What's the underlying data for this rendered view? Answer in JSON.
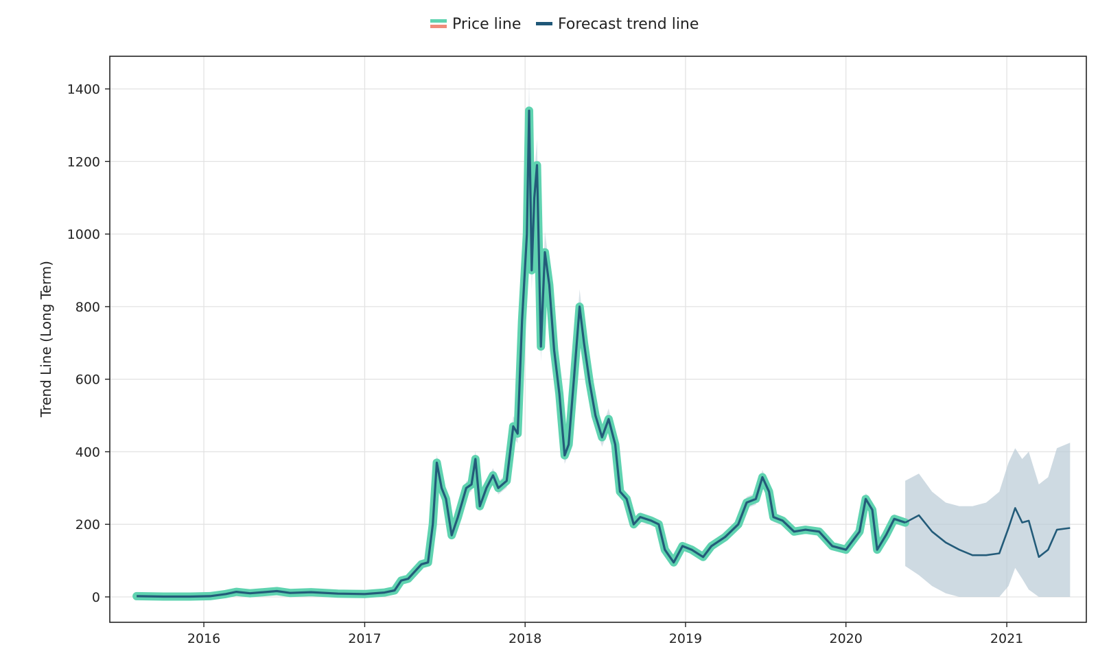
{
  "chart_data": {
    "type": "line",
    "ylabel": "Trend Line (Long Term)",
    "xlabel": "",
    "title": "",
    "legend_position": "top-center",
    "grid": true,
    "x_ticks": [
      "2016",
      "2017",
      "2018",
      "2019",
      "2020",
      "2021"
    ],
    "y_ticks": [
      0,
      200,
      400,
      600,
      800,
      1000,
      1200,
      1400
    ],
    "xlim": [
      "2015-06-01",
      "2021-07-01"
    ],
    "ylim": [
      -70,
      1490
    ],
    "legend": [
      {
        "label": "Price line",
        "colors": [
          "#5fd3b0",
          "#f08b7a"
        ]
      },
      {
        "label": "Forecast trend line",
        "colors": [
          "#1f5778"
        ]
      }
    ],
    "colors": {
      "price_line": "#5fd3b0",
      "forecast_line": "#235b79",
      "confidence_band": "#b9cad6"
    },
    "series": [
      {
        "name": "Price line",
        "points": [
          [
            "2015-08-01",
            2
          ],
          [
            "2015-10-01",
            1
          ],
          [
            "2015-12-01",
            1
          ],
          [
            "2016-01-15",
            2
          ],
          [
            "2016-02-20",
            8
          ],
          [
            "2016-03-15",
            14
          ],
          [
            "2016-04-15",
            10
          ],
          [
            "2016-06-15",
            16
          ],
          [
            "2016-07-15",
            11
          ],
          [
            "2016-09-01",
            13
          ],
          [
            "2016-11-01",
            9
          ],
          [
            "2017-01-01",
            8
          ],
          [
            "2017-02-15",
            12
          ],
          [
            "2017-03-10",
            18
          ],
          [
            "2017-03-25",
            45
          ],
          [
            "2017-04-10",
            50
          ],
          [
            "2017-05-10",
            90
          ],
          [
            "2017-05-25",
            95
          ],
          [
            "2017-06-05",
            200
          ],
          [
            "2017-06-14",
            370
          ],
          [
            "2017-06-25",
            300
          ],
          [
            "2017-07-05",
            270
          ],
          [
            "2017-07-18",
            170
          ],
          [
            "2017-08-01",
            220
          ],
          [
            "2017-08-20",
            300
          ],
          [
            "2017-09-01",
            310
          ],
          [
            "2017-09-10",
            380
          ],
          [
            "2017-09-20",
            250
          ],
          [
            "2017-10-05",
            300
          ],
          [
            "2017-10-20",
            335
          ],
          [
            "2017-11-01",
            300
          ],
          [
            "2017-11-20",
            320
          ],
          [
            "2017-12-05",
            470
          ],
          [
            "2017-12-15",
            450
          ],
          [
            "2017-12-25",
            760
          ],
          [
            "2018-01-05",
            1000
          ],
          [
            "2018-01-10",
            1340
          ],
          [
            "2018-01-16",
            900
          ],
          [
            "2018-01-22",
            1100
          ],
          [
            "2018-01-28",
            1190
          ],
          [
            "2018-02-06",
            690
          ],
          [
            "2018-02-15",
            950
          ],
          [
            "2018-02-25",
            860
          ],
          [
            "2018-03-08",
            680
          ],
          [
            "2018-03-20",
            560
          ],
          [
            "2018-04-01",
            390
          ],
          [
            "2018-04-10",
            420
          ],
          [
            "2018-04-22",
            600
          ],
          [
            "2018-05-05",
            800
          ],
          [
            "2018-05-15",
            700
          ],
          [
            "2018-05-28",
            590
          ],
          [
            "2018-06-10",
            500
          ],
          [
            "2018-06-25",
            440
          ],
          [
            "2018-07-10",
            490
          ],
          [
            "2018-07-25",
            420
          ],
          [
            "2018-08-05",
            290
          ],
          [
            "2018-08-20",
            270
          ],
          [
            "2018-09-05",
            200
          ],
          [
            "2018-09-20",
            220
          ],
          [
            "2018-10-15",
            210
          ],
          [
            "2018-11-01",
            200
          ],
          [
            "2018-11-15",
            130
          ],
          [
            "2018-12-05",
            95
          ],
          [
            "2018-12-25",
            140
          ],
          [
            "2019-01-15",
            130
          ],
          [
            "2019-02-10",
            110
          ],
          [
            "2019-03-01",
            140
          ],
          [
            "2019-04-01",
            165
          ],
          [
            "2019-05-01",
            200
          ],
          [
            "2019-05-20",
            260
          ],
          [
            "2019-06-10",
            270
          ],
          [
            "2019-06-25",
            330
          ],
          [
            "2019-07-10",
            290
          ],
          [
            "2019-07-20",
            220
          ],
          [
            "2019-08-10",
            210
          ],
          [
            "2019-09-05",
            180
          ],
          [
            "2019-10-01",
            185
          ],
          [
            "2019-11-01",
            180
          ],
          [
            "2019-12-01",
            140
          ],
          [
            "2020-01-01",
            130
          ],
          [
            "2020-02-01",
            180
          ],
          [
            "2020-02-15",
            270
          ],
          [
            "2020-03-01",
            240
          ],
          [
            "2020-03-12",
            130
          ],
          [
            "2020-04-01",
            170
          ],
          [
            "2020-04-20",
            215
          ],
          [
            "2020-05-15",
            205
          ]
        ]
      },
      {
        "name": "Forecast trend line",
        "points": [
          [
            "2020-05-15",
            205
          ],
          [
            "2020-06-15",
            225
          ],
          [
            "2020-07-15",
            180
          ],
          [
            "2020-08-15",
            150
          ],
          [
            "2020-09-15",
            130
          ],
          [
            "2020-10-15",
            115
          ],
          [
            "2020-11-15",
            115
          ],
          [
            "2020-12-15",
            120
          ],
          [
            "2021-01-05",
            190
          ],
          [
            "2021-01-20",
            245
          ],
          [
            "2021-02-05",
            205
          ],
          [
            "2021-02-20",
            210
          ],
          [
            "2021-03-15",
            110
          ],
          [
            "2021-04-05",
            130
          ],
          [
            "2021-04-25",
            185
          ],
          [
            "2021-05-25",
            190
          ]
        ],
        "lower": [
          85,
          60,
          30,
          10,
          0,
          0,
          0,
          0,
          30,
          80,
          50,
          20,
          0,
          0,
          0,
          0
        ],
        "upper": [
          320,
          340,
          290,
          260,
          250,
          250,
          260,
          290,
          370,
          410,
          380,
          400,
          310,
          330,
          410,
          425
        ]
      }
    ]
  }
}
